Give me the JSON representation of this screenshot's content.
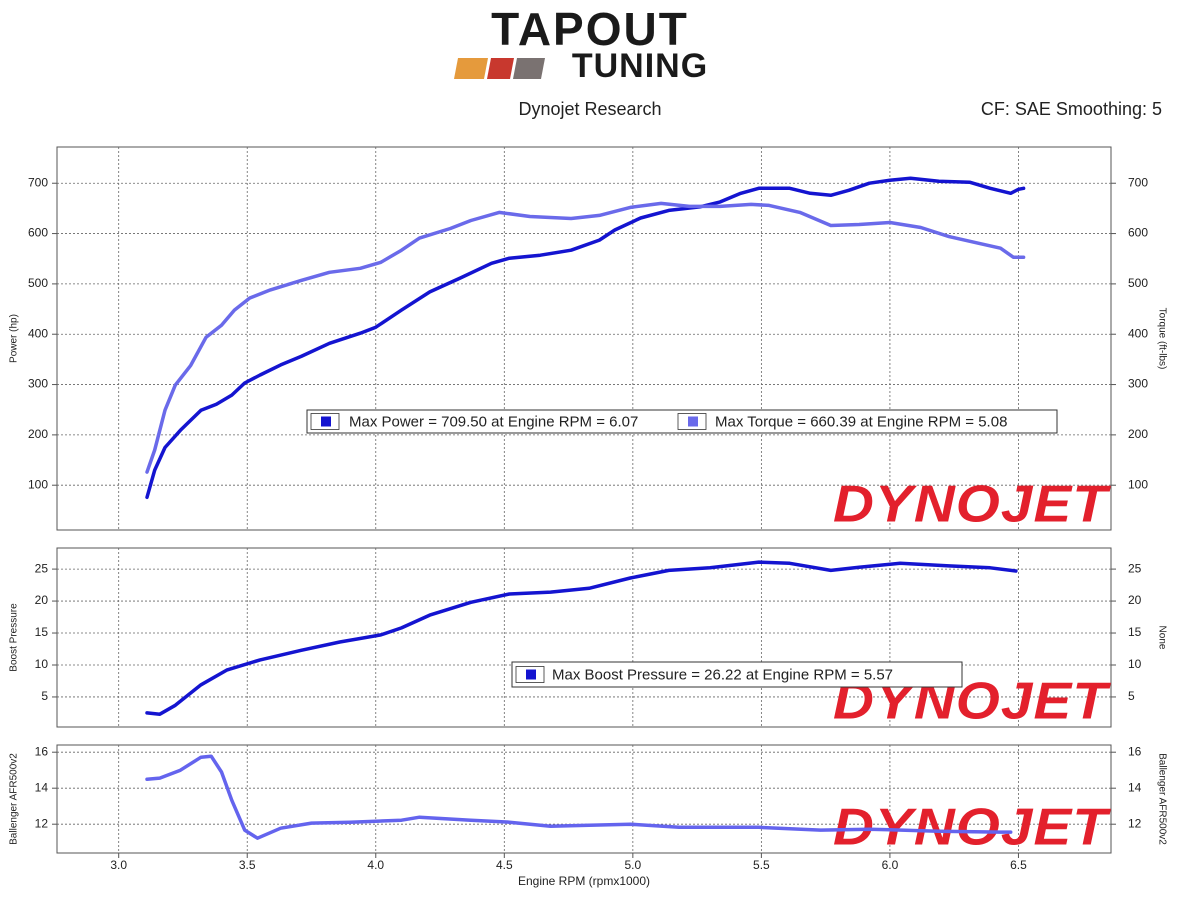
{
  "header": {
    "logo_top": "TAPOUT",
    "logo_bottom": "TUNING",
    "title": "Dynojet Research",
    "settings": "CF: SAE Smoothing: 5"
  },
  "watermark": "DYNOJET",
  "chart_data": [
    {
      "type": "line",
      "ylabel": "Power (hp)",
      "y2label": "Torque (ft-lbs)",
      "xlim": [
        2.76,
        6.86
      ],
      "ylim": [
        11,
        772
      ],
      "yticks": [
        100,
        200,
        300,
        400,
        500,
        600,
        700
      ],
      "y2lim": [
        11,
        772
      ],
      "y2ticks": [
        100,
        200,
        300,
        400,
        500,
        600,
        700
      ],
      "grid": true,
      "series": [
        {
          "name": "Max Power = 709.50 at Engine RPM = 6.07",
          "color": "#1414d0",
          "x": [
            3.11,
            3.14,
            3.18,
            3.24,
            3.28,
            3.32,
            3.38,
            3.44,
            3.49,
            3.55,
            3.63,
            3.71,
            3.82,
            3.94,
            4.0,
            4.1,
            4.21,
            4.33,
            4.45,
            4.52,
            4.64,
            4.76,
            4.87,
            4.93,
            5.03,
            5.14,
            5.26,
            5.34,
            5.42,
            5.49,
            5.61,
            5.69,
            5.77,
            5.84,
            5.92,
            6.0,
            6.08,
            6.19,
            6.31,
            6.39,
            6.47,
            6.5,
            6.52
          ],
          "values": [
            76,
            130,
            175,
            209,
            229,
            249,
            261,
            279,
            303,
            319,
            339,
            356,
            382,
            402,
            414,
            448,
            484,
            512,
            541,
            551,
            557,
            567,
            587,
            607,
            631,
            646,
            653,
            663,
            680,
            690,
            690,
            680,
            676,
            686,
            700,
            706,
            710,
            704,
            702,
            690,
            680,
            688,
            690
          ]
        },
        {
          "name": "Max Torque = 660.39 at Engine RPM = 5.08",
          "color": "#6a6aea",
          "axis": "y2",
          "x": [
            3.11,
            3.14,
            3.18,
            3.22,
            3.28,
            3.34,
            3.4,
            3.45,
            3.51,
            3.59,
            3.71,
            3.82,
            3.94,
            4.02,
            4.1,
            4.17,
            4.29,
            4.37,
            4.48,
            4.6,
            4.76,
            4.87,
            4.99,
            5.11,
            5.22,
            5.34,
            5.46,
            5.53,
            5.65,
            5.77,
            5.88,
            6.0,
            6.12,
            6.23,
            6.35,
            6.43,
            6.48,
            6.52
          ],
          "values": [
            126,
            170,
            249,
            299,
            338,
            394,
            418,
            448,
            472,
            488,
            507,
            523,
            531,
            543,
            567,
            591,
            610,
            626,
            642,
            634,
            630,
            636,
            652,
            660,
            654,
            654,
            658,
            656,
            642,
            616,
            618,
            622,
            612,
            594,
            580,
            571,
            553,
            553
          ]
        }
      ]
    },
    {
      "type": "line",
      "ylabel": "Boost Pressure",
      "y2label": "None",
      "xlim": [
        2.76,
        6.86
      ],
      "ylim": [
        0.3,
        28.3
      ],
      "yticks": [
        5,
        10,
        15,
        20,
        25
      ],
      "y2lim": [
        0.3,
        28.3
      ],
      "y2ticks": [
        5,
        10,
        15,
        20,
        25
      ],
      "grid": true,
      "series": [
        {
          "name": "Max Boost Pressure = 26.22 at Engine RPM = 5.57",
          "color": "#1414d0",
          "x": [
            3.11,
            3.16,
            3.22,
            3.32,
            3.42,
            3.55,
            3.71,
            3.86,
            4.02,
            4.1,
            4.21,
            4.37,
            4.52,
            4.68,
            4.83,
            4.99,
            5.14,
            5.3,
            5.49,
            5.61,
            5.77,
            5.88,
            6.04,
            6.23,
            6.39,
            6.49
          ],
          "values": [
            2.5,
            2.3,
            3.7,
            6.9,
            9.2,
            10.8,
            12.3,
            13.6,
            14.7,
            15.8,
            17.8,
            19.8,
            21.1,
            21.4,
            22.0,
            23.6,
            24.8,
            25.2,
            26.1,
            25.9,
            24.8,
            25.3,
            25.9,
            25.5,
            25.2,
            24.7
          ]
        }
      ]
    },
    {
      "type": "line",
      "ylabel": "Ballenger AFR500v2",
      "y2label": "Ballenger AFR500v2",
      "xlabel": "Engine RPM (rpmx1000)",
      "xlim": [
        2.76,
        6.86
      ],
      "ylim": [
        10.4,
        16.4
      ],
      "yticks": [
        12,
        14,
        16
      ],
      "y2lim": [
        10.4,
        16.4
      ],
      "y2ticks": [
        12,
        14,
        16
      ],
      "grid": true,
      "xticks": [
        {
          "value": 3,
          "label": "3.0"
        },
        3.5,
        {
          "value": 4,
          "label": "4.0"
        },
        4.5,
        {
          "value": 5,
          "label": "5.0"
        },
        5.5,
        {
          "value": 6,
          "label": "6.0"
        },
        6.5
      ],
      "series": [
        {
          "color": "#6464ee",
          "x": [
            3.11,
            3.16,
            3.24,
            3.32,
            3.36,
            3.4,
            3.44,
            3.49,
            3.54,
            3.63,
            3.75,
            3.9,
            4.1,
            4.17,
            4.37,
            4.52,
            4.68,
            4.83,
            4.99,
            5.18,
            5.49,
            5.73,
            5.92,
            6.19,
            6.43,
            6.47
          ],
          "values": [
            14.5,
            14.56,
            15.0,
            15.72,
            15.78,
            14.9,
            13.33,
            11.67,
            11.22,
            11.78,
            12.06,
            12.11,
            12.22,
            12.39,
            12.22,
            12.11,
            11.89,
            11.94,
            12.0,
            11.83,
            11.83,
            11.67,
            11.72,
            11.61,
            11.56,
            11.56
          ]
        }
      ]
    }
  ]
}
